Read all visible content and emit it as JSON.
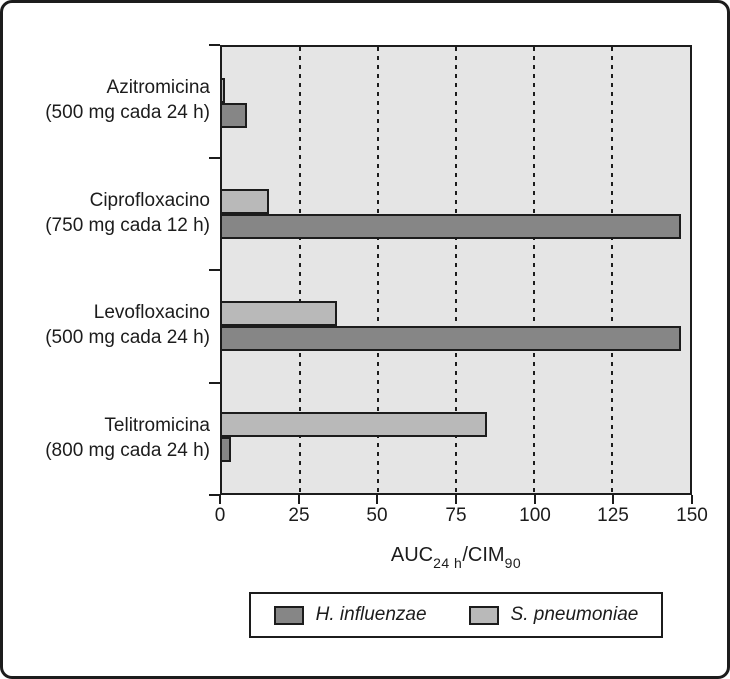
{
  "chart_data": {
    "type": "bar",
    "orientation": "horizontal",
    "title": "",
    "xlabel_parts": {
      "base1": "AUC",
      "sub1": "24 h",
      "base2": "/CIM",
      "sub2": "90"
    },
    "xlim": [
      0,
      150
    ],
    "x_ticks": [
      "0",
      "25",
      "50",
      "75",
      "100",
      "125",
      "150"
    ],
    "x_tick_values": [
      0,
      25,
      50,
      75,
      100,
      125,
      150
    ],
    "gridline_values": [
      25,
      50,
      75,
      100,
      125
    ],
    "grid_style": "dashed-vertical",
    "plot_background": "#e5e5e5",
    "axis_color": "#1c1c1c",
    "categories": [
      {
        "name": "Azitromicina",
        "dose": "(500 mg cada 24 h)"
      },
      {
        "name": "Ciprofloxacino",
        "dose": "(750 mg cada 12 h)"
      },
      {
        "name": "Levofloxacino",
        "dose": "(500 mg cada 24 h)"
      },
      {
        "name": "Telitromicina",
        "dose": "(800 mg cada 24 h)"
      }
    ],
    "series": [
      {
        "name": "H. influenzae",
        "color": "#868686",
        "values": [
          8,
          147,
          147,
          3
        ]
      },
      {
        "name": "S. pneumoniae",
        "color": "#b9b9b9",
        "values": [
          1,
          15,
          37,
          85
        ]
      }
    ],
    "row_order_top_to_bottom": [
      1,
      0
    ],
    "legend_position": "bottom"
  }
}
